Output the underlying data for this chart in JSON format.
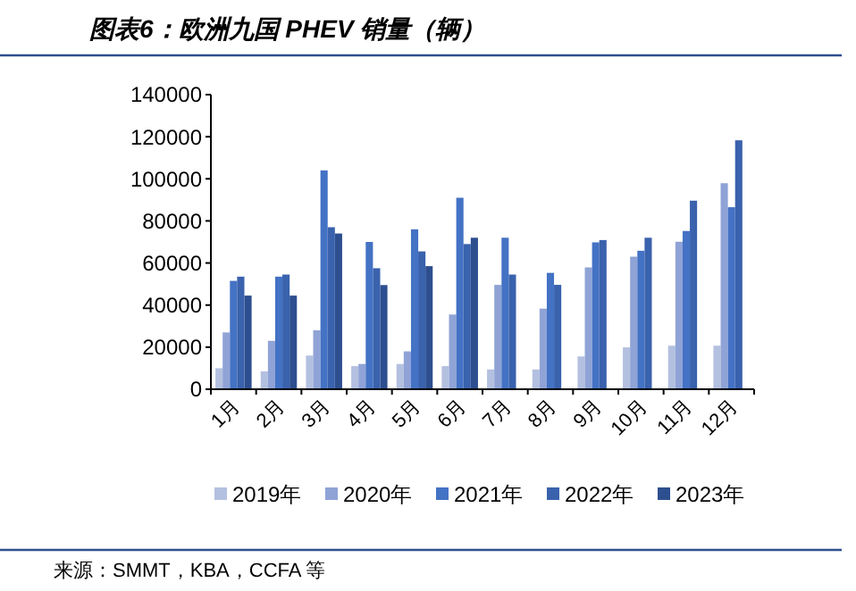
{
  "chart_data": {
    "type": "bar",
    "title": "图表6：欧洲九国 PHEV 销量（辆）",
    "categories": [
      "1月",
      "2月",
      "3月",
      "4月",
      "5月",
      "6月",
      "7月",
      "8月",
      "9月",
      "10月",
      "11月",
      "12月"
    ],
    "series": [
      {
        "name": "2019年",
        "color": "#b4c0e0",
        "values": [
          10000,
          8500,
          16000,
          11000,
          12000,
          11000,
          9400,
          9400,
          15600,
          19900,
          20700,
          20700
        ]
      },
      {
        "name": "2020年",
        "color": "#8fa3d6",
        "values": [
          27000,
          23000,
          28000,
          12000,
          18000,
          35500,
          49600,
          38300,
          57900,
          63000,
          70100,
          97900
        ]
      },
      {
        "name": "2021年",
        "color": "#4472c4",
        "values": [
          51500,
          53500,
          104000,
          70000,
          76000,
          91000,
          72000,
          55300,
          69800,
          65800,
          75200,
          86500
        ]
      },
      {
        "name": "2022年",
        "color": "#3a62ad",
        "values": [
          53500,
          54500,
          77000,
          57500,
          65500,
          69000,
          54500,
          49600,
          70900,
          72000,
          89600,
          118300
        ]
      },
      {
        "name": "2023年",
        "color": "#2e4f8f",
        "values": [
          44500,
          44500,
          74000,
          49500,
          58500,
          72000,
          null,
          null,
          null,
          null,
          null,
          null
        ]
      }
    ],
    "ylim": [
      0,
      140000
    ],
    "yticks": [
      0,
      20000,
      40000,
      60000,
      80000,
      100000,
      120000,
      140000
    ],
    "grid": false,
    "legend": "bottom",
    "annotations": [
      "来源：SMMT，KBA，CCFA 等"
    ]
  }
}
